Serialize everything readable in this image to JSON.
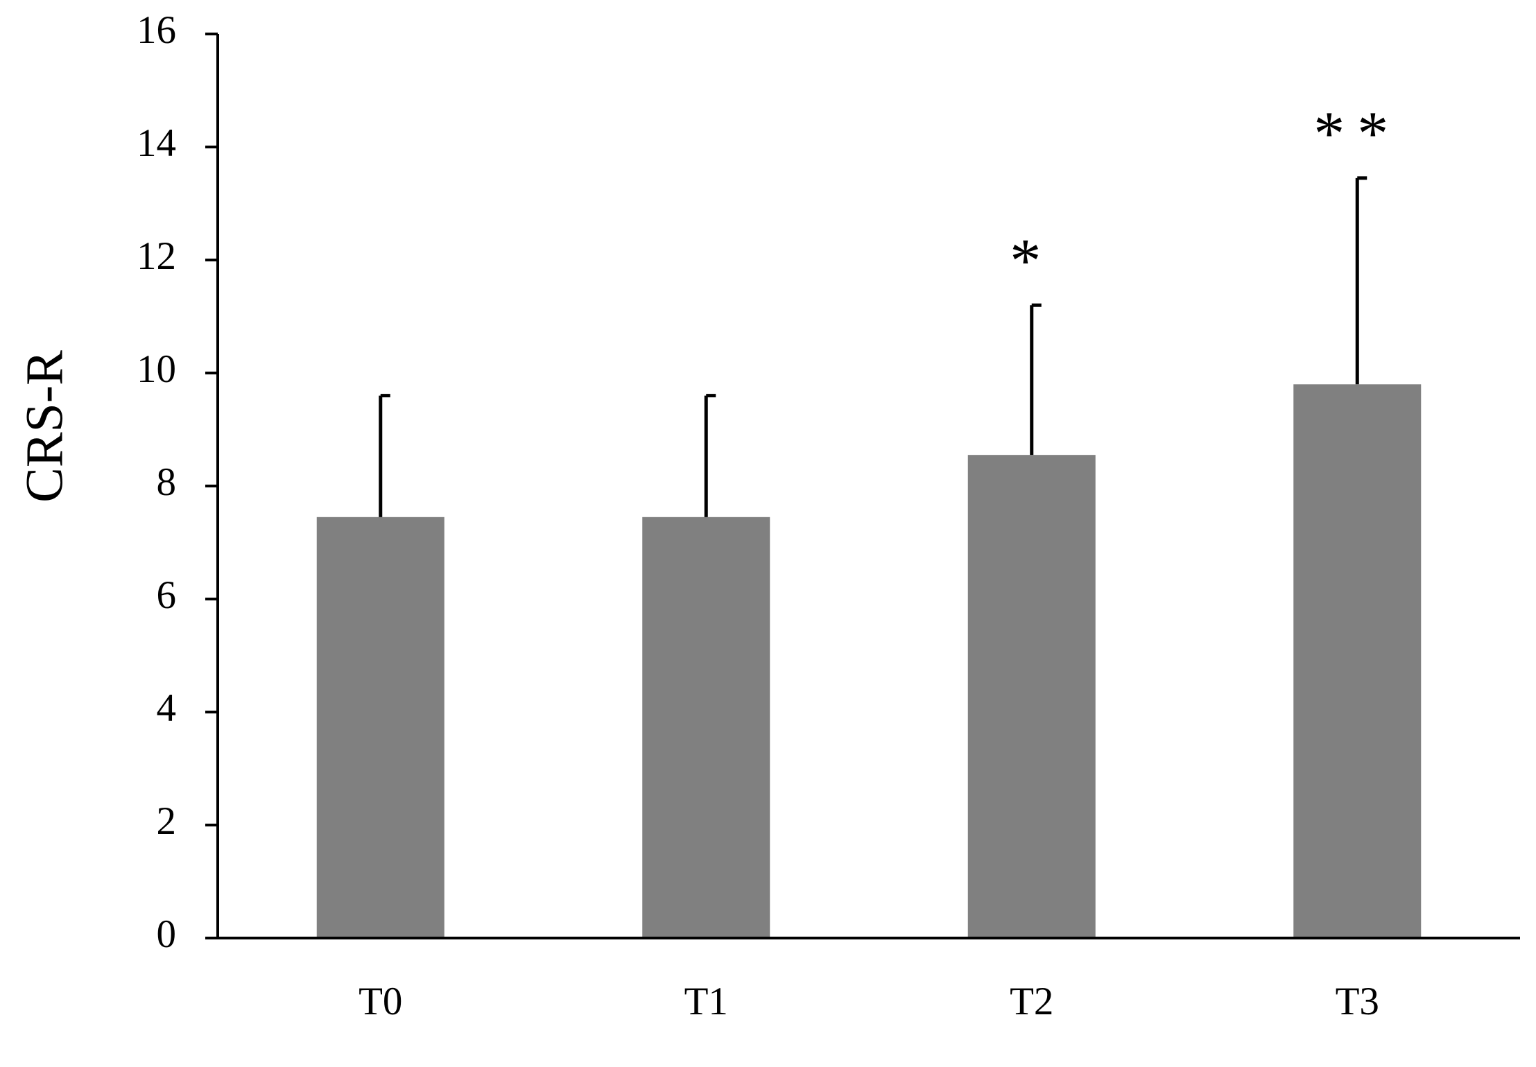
{
  "chart_data": {
    "type": "bar",
    "ylabel": "CRS-R",
    "categories": [
      "T0",
      "T1",
      "T2",
      "T3"
    ],
    "values": [
      7.45,
      7.45,
      8.55,
      9.8
    ],
    "errors": [
      2.15,
      2.15,
      2.65,
      3.65
    ],
    "annotations": [
      null,
      null,
      "*",
      "**"
    ],
    "color": "#808080",
    "ylim": [
      0,
      16
    ],
    "yticks": [
      0,
      2,
      4,
      6,
      8,
      10,
      12,
      14,
      16
    ],
    "grid": false
  }
}
